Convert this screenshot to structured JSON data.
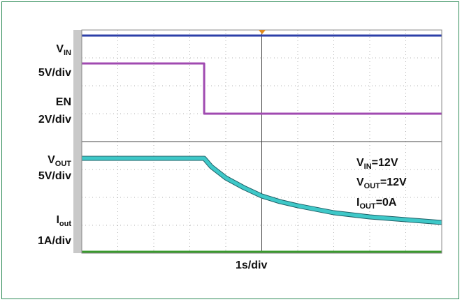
{
  "chart_data": {
    "type": "line",
    "title": "",
    "xlabel": "1s/div",
    "labels": {
      "vin": {
        "main": "V",
        "sub": "IN"
      },
      "vin_scale": "5V/div",
      "en": "EN",
      "en_scale": "2V/div",
      "vout": {
        "main": "V",
        "sub": "OUT"
      },
      "vout_scale": "5V/div",
      "iout": {
        "main": "I",
        "sub": "out"
      },
      "iout_scale": "1A/div"
    },
    "conditions": [
      {
        "main": "V",
        "sub": "IN",
        "value": "=12V"
      },
      {
        "main": "V",
        "sub": "OUT",
        "value": "=12V"
      },
      {
        "main": "I",
        "sub": "OUT",
        "value": "=0A"
      }
    ],
    "x_divisions": 10,
    "y_divisions": 8,
    "series": [
      {
        "name": "VIN",
        "color": "#2c3fa8",
        "x": [
          0,
          10
        ],
        "y": [
          7.8,
          7.8
        ]
      },
      {
        "name": "EN",
        "color": "#a04ab0",
        "x": [
          0,
          3.4,
          3.4,
          10
        ],
        "y": [
          6.8,
          6.8,
          5.0,
          5.0
        ]
      },
      {
        "name": "VOUT",
        "color": "#3ec8c8",
        "x": [
          0,
          3.4,
          3.6,
          4.0,
          4.5,
          5.0,
          5.5,
          6.0,
          7.0,
          8.0,
          9.0,
          10.0
        ],
        "y": [
          3.4,
          3.4,
          3.1,
          2.7,
          2.35,
          2.05,
          1.85,
          1.7,
          1.45,
          1.3,
          1.2,
          1.1
        ]
      },
      {
        "name": "Iout",
        "color": "#3a9a2e",
        "x": [
          0,
          10
        ],
        "y": [
          0.05,
          0.05
        ]
      }
    ]
  }
}
